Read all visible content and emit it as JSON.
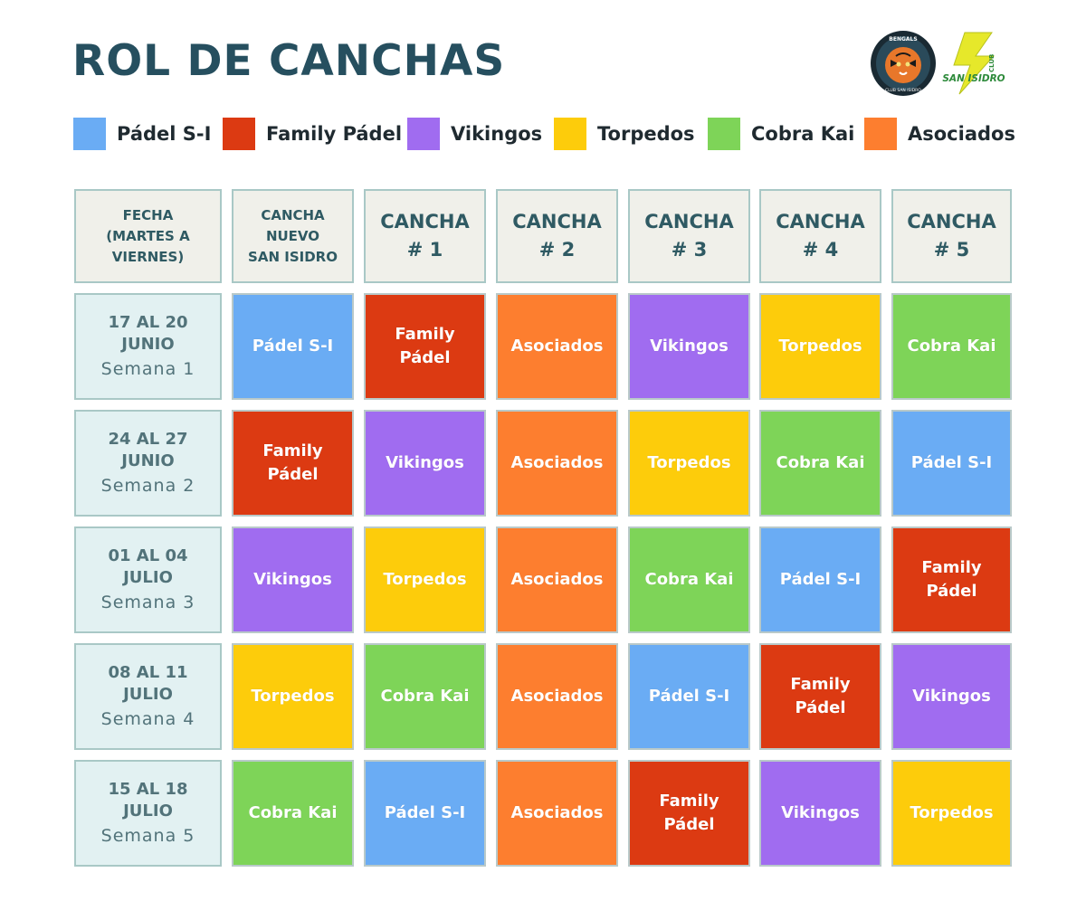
{
  "title": "ROL DE CANCHAS",
  "logos": {
    "club_text": "CLUB",
    "club_name": "SAN ISIDRO",
    "bengals_text": "BENGALS",
    "bengals_sub": "CLUB SAN ISIDRO"
  },
  "colors": {
    "padel_si": "#6aacf4",
    "family": "#dc3a12",
    "vikingos": "#a06cf0",
    "torpedos": "#fdcc0b",
    "cobra": "#7ed458",
    "asociados": "#fd7e2f"
  },
  "legend": [
    {
      "key": "padel_si",
      "label": "Pádel S-I"
    },
    {
      "key": "family",
      "label": "Family Pádel"
    },
    {
      "key": "vikingos",
      "label": "Vikingos"
    },
    {
      "key": "torpedos",
      "label": "Torpedos"
    },
    {
      "key": "cobra",
      "label": "Cobra Kai"
    },
    {
      "key": "asociados",
      "label": "Asociados"
    }
  ],
  "headers": [
    {
      "lines": [
        "FECHA",
        "(MARTES A",
        "VIERNES)"
      ],
      "size": "small"
    },
    {
      "lines": [
        "CANCHA",
        "NUEVO",
        "SAN ISIDRO"
      ],
      "size": "small"
    },
    {
      "lines": [
        "CANCHA",
        "# 1"
      ],
      "size": "big"
    },
    {
      "lines": [
        "CANCHA",
        "# 2"
      ],
      "size": "big"
    },
    {
      "lines": [
        "CANCHA",
        "# 3"
      ],
      "size": "big"
    },
    {
      "lines": [
        "CANCHA",
        "# 4"
      ],
      "size": "big"
    },
    {
      "lines": [
        "CANCHA",
        "# 5"
      ],
      "size": "big"
    }
  ],
  "rows": [
    {
      "date_lines": [
        "17 AL 20",
        "JUNIO"
      ],
      "week": "Semana 1",
      "cells": [
        {
          "team": "padel_si",
          "label": "Pádel S-I"
        },
        {
          "team": "family",
          "label": "Family Pádel"
        },
        {
          "team": "asociados",
          "label": "Asociados"
        },
        {
          "team": "vikingos",
          "label": "Vikingos"
        },
        {
          "team": "torpedos",
          "label": "Torpedos"
        },
        {
          "team": "cobra",
          "label": "Cobra Kai"
        }
      ]
    },
    {
      "date_lines": [
        "24 AL 27",
        "JUNIO"
      ],
      "week": "Semana 2",
      "cells": [
        {
          "team": "family",
          "label": "Family Pádel"
        },
        {
          "team": "vikingos",
          "label": "Vikingos"
        },
        {
          "team": "asociados",
          "label": "Asociados"
        },
        {
          "team": "torpedos",
          "label": "Torpedos"
        },
        {
          "team": "cobra",
          "label": "Cobra Kai"
        },
        {
          "team": "padel_si",
          "label": "Pádel S-I"
        }
      ]
    },
    {
      "date_lines": [
        "01 AL 04",
        "JULIO"
      ],
      "week": "Semana 3",
      "cells": [
        {
          "team": "vikingos",
          "label": "Vikingos"
        },
        {
          "team": "torpedos",
          "label": "Torpedos"
        },
        {
          "team": "asociados",
          "label": "Asociados"
        },
        {
          "team": "cobra",
          "label": "Cobra Kai"
        },
        {
          "team": "padel_si",
          "label": "Pádel S-I"
        },
        {
          "team": "family",
          "label": "Family Pádel"
        }
      ]
    },
    {
      "date_lines": [
        "08 AL 11",
        "JULIO"
      ],
      "week": "Semana 4",
      "cells": [
        {
          "team": "torpedos",
          "label": "Torpedos"
        },
        {
          "team": "cobra",
          "label": "Cobra Kai"
        },
        {
          "team": "asociados",
          "label": "Asociados"
        },
        {
          "team": "padel_si",
          "label": "Pádel S-I"
        },
        {
          "team": "family",
          "label": "Family Pádel"
        },
        {
          "team": "vikingos",
          "label": "Vikingos"
        }
      ]
    },
    {
      "date_lines": [
        "15 AL 18",
        "JULIO"
      ],
      "week": "Semana 5",
      "cells": [
        {
          "team": "cobra",
          "label": "Cobra Kai"
        },
        {
          "team": "padel_si",
          "label": "Pádel S-I"
        },
        {
          "team": "asociados",
          "label": "Asociados"
        },
        {
          "team": "family",
          "label": "Family Pádel"
        },
        {
          "team": "vikingos",
          "label": "Vikingos"
        },
        {
          "team": "torpedos",
          "label": "Torpedos"
        }
      ]
    }
  ]
}
